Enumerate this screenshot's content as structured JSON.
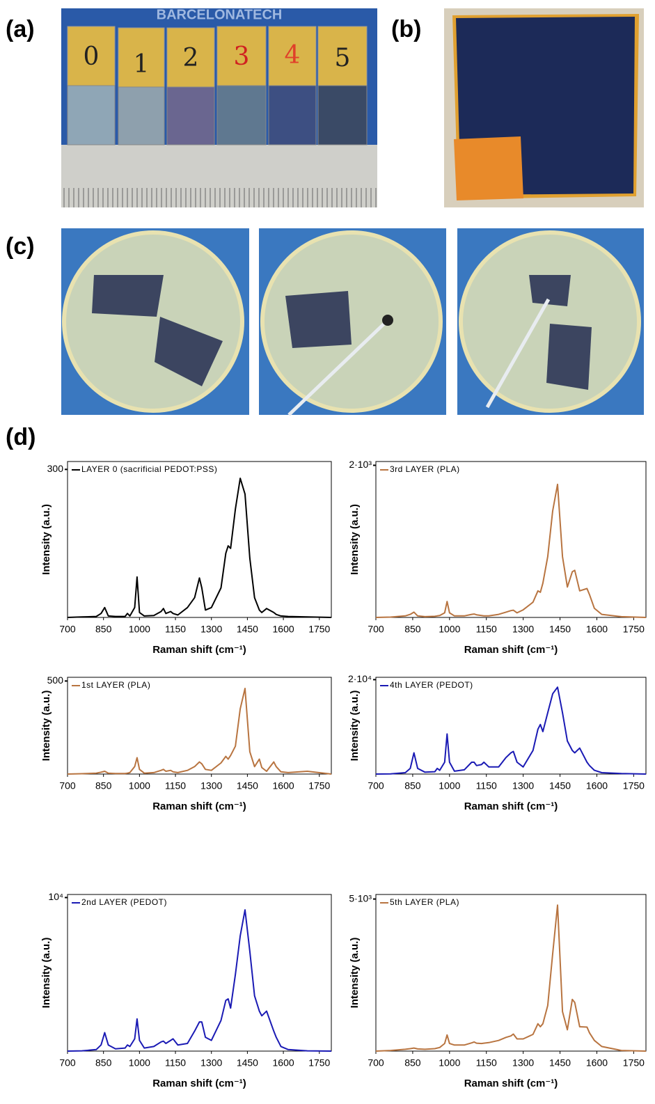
{
  "panel_labels": [
    "(a)",
    "(b)",
    "(c)",
    "(d)"
  ],
  "photo_a": {
    "banner": "BARCELONATECH",
    "sample_labels": [
      "0",
      "1",
      "2",
      "3",
      "4",
      "5"
    ]
  },
  "chart_data": [
    {
      "type": "line",
      "x_label": "Raman shift (cm⁻¹)",
      "y_label": "Intensity (a.u.)",
      "x": [
        700,
        760,
        820,
        840,
        855,
        870,
        900,
        940,
        950,
        960,
        980,
        990,
        1000,
        1020,
        1060,
        1090,
        1100,
        1110,
        1130,
        1140,
        1160,
        1200,
        1230,
        1250,
        1260,
        1275,
        1300,
        1340,
        1360,
        1370,
        1380,
        1400,
        1420,
        1440,
        1460,
        1480,
        1500,
        1510,
        1530,
        1560,
        1570,
        1590,
        1620,
        1700,
        1800
      ],
      "series": [
        {
          "name": "LAYER 0 (sacrificial PEDOT:PSS)",
          "color": "#000000",
          "values": [
            0,
            1,
            2,
            8,
            20,
            3,
            2,
            2,
            8,
            3,
            20,
            82,
            10,
            3,
            4,
            12,
            18,
            8,
            12,
            8,
            5,
            20,
            40,
            80,
            60,
            15,
            20,
            60,
            130,
            145,
            140,
            220,
            282,
            250,
            120,
            40,
            15,
            10,
            18,
            10,
            6,
            3,
            2,
            1,
            0
          ]
        }
      ],
      "xlim": [
        700,
        1800
      ],
      "ylim": [
        0,
        316
      ],
      "xticks": [
        700,
        850,
        1000,
        1150,
        1300,
        1450,
        1600,
        1750
      ],
      "yticks": [
        300
      ]
    },
    {
      "type": "line",
      "x_label": "Raman shift (cm⁻¹)",
      "y_label": "Intensity (a.u.)",
      "x": [
        700,
        760,
        820,
        840,
        855,
        870,
        900,
        940,
        950,
        960,
        980,
        990,
        1000,
        1020,
        1060,
        1090,
        1100,
        1110,
        1130,
        1140,
        1160,
        1200,
        1230,
        1250,
        1260,
        1275,
        1300,
        1340,
        1360,
        1370,
        1380,
        1400,
        1420,
        1440,
        1460,
        1480,
        1500,
        1510,
        1530,
        1560,
        1570,
        1590,
        1620,
        1700,
        1800
      ],
      "series": [
        {
          "name": "3rd LAYER (PLA)",
          "color": "#b87440",
          "values": [
            0,
            5,
            20,
            40,
            70,
            20,
            10,
            15,
            20,
            25,
            60,
            210,
            60,
            20,
            20,
            40,
            45,
            35,
            25,
            20,
            20,
            40,
            70,
            90,
            95,
            60,
            100,
            200,
            350,
            330,
            450,
            800,
            1400,
            1750,
            800,
            400,
            600,
            620,
            350,
            380,
            300,
            120,
            40,
            10,
            0
          ]
        }
      ],
      "xlim": [
        700,
        1800
      ],
      "ylim": [
        0,
        2050
      ],
      "xticks": [
        700,
        850,
        1000,
        1150,
        1300,
        1450,
        1600,
        1750
      ],
      "yticks": [
        {
          "value": 2000,
          "label": "2·10³"
        }
      ]
    },
    {
      "type": "line",
      "x_label": "Raman shift (cm⁻¹)",
      "y_label": "Intensity (a.u.)",
      "x": [
        700,
        760,
        820,
        840,
        855,
        870,
        900,
        940,
        950,
        960,
        980,
        990,
        1000,
        1020,
        1060,
        1090,
        1100,
        1110,
        1130,
        1140,
        1160,
        1200,
        1230,
        1250,
        1260,
        1275,
        1300,
        1340,
        1360,
        1370,
        1380,
        1400,
        1420,
        1440,
        1460,
        1480,
        1500,
        1510,
        1530,
        1560,
        1570,
        1590,
        1620,
        1700,
        1800
      ],
      "series": [
        {
          "name": "1st LAYER (PLA)",
          "color": "#b87440",
          "values": [
            0,
            2,
            5,
            10,
            15,
            5,
            3,
            3,
            5,
            8,
            40,
            88,
            25,
            5,
            8,
            20,
            25,
            15,
            20,
            12,
            8,
            20,
            40,
            65,
            55,
            25,
            20,
            60,
            95,
            80,
            100,
            150,
            350,
            460,
            120,
            40,
            80,
            35,
            15,
            65,
            40,
            12,
            8,
            15,
            0
          ]
        }
      ],
      "xlim": [
        700,
        1800
      ],
      "ylim": [
        0,
        520
      ],
      "xticks": [
        700,
        850,
        1000,
        1150,
        1300,
        1450,
        1600,
        1750
      ],
      "yticks": [
        500
      ]
    },
    {
      "type": "line",
      "x_label": "Raman shift (cm⁻¹)",
      "y_label": "Intensity (a.u.)",
      "x": [
        700,
        760,
        820,
        840,
        855,
        870,
        900,
        940,
        950,
        960,
        980,
        990,
        1000,
        1020,
        1060,
        1090,
        1100,
        1110,
        1130,
        1140,
        1160,
        1200,
        1230,
        1250,
        1260,
        1275,
        1300,
        1340,
        1360,
        1370,
        1380,
        1400,
        1420,
        1440,
        1460,
        1480,
        1500,
        1510,
        1530,
        1560,
        1570,
        1590,
        1620,
        1700,
        1800
      ],
      "series": [
        {
          "name": "4th LAYER (PEDOT)",
          "color": "#1a1ab4",
          "values": [
            0,
            50,
            300,
            1200,
            4500,
            1200,
            400,
            500,
            1200,
            800,
            2500,
            8500,
            2500,
            600,
            900,
            2500,
            2500,
            1800,
            2000,
            2500,
            1500,
            1500,
            3500,
            4500,
            4800,
            2500,
            1500,
            5000,
            9500,
            10500,
            9000,
            13000,
            17000,
            18400,
            13000,
            7000,
            5000,
            4500,
            5500,
            2500,
            1800,
            800,
            300,
            100,
            0
          ]
        }
      ],
      "xlim": [
        700,
        1800
      ],
      "ylim": [
        0,
        20500
      ],
      "xticks": [
        700,
        850,
        1000,
        1150,
        1300,
        1450,
        1600,
        1750
      ],
      "yticks": [
        {
          "value": 20000,
          "label": "2·10⁴"
        }
      ]
    },
    {
      "type": "line",
      "x_label": "Raman shift (cm⁻¹)",
      "y_label": "Intensity (a.u.)",
      "x": [
        700,
        760,
        820,
        840,
        855,
        870,
        900,
        940,
        950,
        960,
        980,
        990,
        1000,
        1020,
        1060,
        1090,
        1100,
        1110,
        1130,
        1140,
        1160,
        1200,
        1230,
        1250,
        1260,
        1275,
        1300,
        1340,
        1360,
        1370,
        1380,
        1400,
        1420,
        1440,
        1460,
        1480,
        1500,
        1510,
        1530,
        1560,
        1570,
        1590,
        1620,
        1700,
        1800
      ],
      "series": [
        {
          "name": "2nd LAYER (PEDOT)",
          "color": "#1a1ab4",
          "values": [
            0,
            20,
            100,
            400,
            1200,
            400,
            150,
            200,
            400,
            300,
            800,
            2100,
            700,
            200,
            300,
            600,
            650,
            500,
            700,
            800,
            400,
            500,
            1300,
            1900,
            1900,
            900,
            700,
            2000,
            3300,
            3400,
            2800,
            5000,
            7500,
            9200,
            6500,
            3600,
            2600,
            2300,
            2600,
            1300,
            900,
            300,
            100,
            20,
            0
          ]
        }
      ],
      "xlim": [
        700,
        1800
      ],
      "ylim": [
        0,
        10200
      ],
      "xticks": [
        700,
        850,
        1000,
        1150,
        1300,
        1450,
        1600,
        1750
      ],
      "yticks": [
        {
          "value": 10000,
          "label": "10⁴"
        }
      ]
    },
    {
      "type": "line",
      "x_label": "Raman shift (cm⁻¹)",
      "y_label": "Intensity (a.u.)",
      "x": [
        700,
        760,
        820,
        840,
        855,
        870,
        900,
        940,
        950,
        960,
        980,
        990,
        1000,
        1020,
        1060,
        1090,
        1100,
        1110,
        1130,
        1140,
        1160,
        1200,
        1230,
        1250,
        1260,
        1275,
        1300,
        1340,
        1360,
        1370,
        1380,
        1400,
        1420,
        1440,
        1460,
        1480,
        1500,
        1510,
        1530,
        1560,
        1570,
        1590,
        1620,
        1700,
        1800
      ],
      "series": [
        {
          "name": "5th LAYER (PLA)",
          "color": "#b87440",
          "values": [
            0,
            20,
            60,
            80,
            100,
            70,
            60,
            80,
            100,
            120,
            250,
            530,
            250,
            200,
            200,
            270,
            300,
            260,
            250,
            260,
            280,
            350,
            450,
            500,
            560,
            400,
            400,
            550,
            900,
            800,
            900,
            1500,
            3200,
            4800,
            1300,
            700,
            1700,
            1600,
            800,
            790,
            600,
            350,
            150,
            20,
            0
          ]
        }
      ],
      "xlim": [
        700,
        1800
      ],
      "ylim": [
        0,
        5150
      ],
      "xticks": [
        700,
        850,
        1000,
        1150,
        1300,
        1450,
        1600,
        1750
      ],
      "yticks": [
        {
          "value": 5000,
          "label": "5·10³"
        }
      ]
    }
  ]
}
